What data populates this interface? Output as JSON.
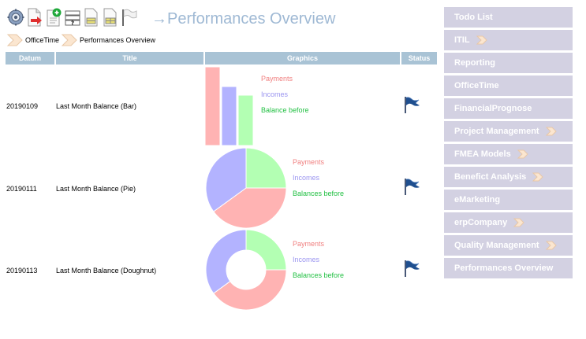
{
  "page_title": "→Performances Overview",
  "toolbar": {
    "icons": [
      "settings-gear-icon",
      "export-document-icon",
      "add-document-icon",
      "help-list-icon",
      "report-document-icon",
      "grid-document-icon",
      "flag-icon"
    ]
  },
  "breadcrumb": [
    {
      "label": "OfficeTime"
    },
    {
      "label": "Performances Overview"
    }
  ],
  "table": {
    "headers": [
      "Datum",
      "Title",
      "Graphics",
      "Status"
    ],
    "rows": [
      {
        "date": "20190109",
        "title": "Last Month Balance (Bar)",
        "chart": "bar",
        "legend": [
          "Payments",
          "Incomes",
          "Balance before"
        ],
        "status_icon": "flag-icon"
      },
      {
        "date": "20190111",
        "title": "Last Month Balance (Pie)",
        "chart": "pie",
        "legend": [
          "Payments",
          "Incomes",
          "Balances before"
        ],
        "status_icon": "flag-icon"
      },
      {
        "date": "20190113",
        "title": "Last Month Balance (Doughnut)",
        "chart": "doughnut",
        "legend": [
          "Payments",
          "Incomes",
          "Balances before"
        ],
        "status_icon": "flag-icon"
      }
    ]
  },
  "chart_data": [
    {
      "type": "bar",
      "categories": [
        "Payments",
        "Incomes",
        "Balance before"
      ],
      "values": [
        100,
        75,
        64
      ],
      "colors": [
        "#ffb3b3",
        "#b3b3ff",
        "#b3ffb3"
      ]
    },
    {
      "type": "pie",
      "categories": [
        "Payments",
        "Incomes",
        "Balances before"
      ],
      "values": [
        40,
        35,
        25
      ],
      "colors": [
        "#ffb3b3",
        "#b3b3ff",
        "#b3ffb3"
      ]
    },
    {
      "type": "pie",
      "subtype": "doughnut",
      "categories": [
        "Payments",
        "Incomes",
        "Balances before"
      ],
      "values": [
        40,
        35,
        25
      ],
      "colors": [
        "#ffb3b3",
        "#b3b3ff",
        "#b3ffb3"
      ]
    }
  ],
  "sidebar": {
    "items": [
      {
        "label": "Todo List",
        "has_submenu": false
      },
      {
        "label": "ITIL",
        "has_submenu": true
      },
      {
        "label": "Reporting",
        "has_submenu": false
      },
      {
        "label": "OfficeTime",
        "has_submenu": false
      },
      {
        "label": "FinancialPrognose",
        "has_submenu": false
      },
      {
        "label": "Project Management",
        "has_submenu": true
      },
      {
        "label": "FMEA Models",
        "has_submenu": true
      },
      {
        "label": "Benefict Analysis",
        "has_submenu": true
      },
      {
        "label": "eMarketing",
        "has_submenu": false
      },
      {
        "label": "erpCompany",
        "has_submenu": true
      },
      {
        "label": "Quality Management",
        "has_submenu": true
      },
      {
        "label": "Performances Overview",
        "has_submenu": false
      }
    ]
  },
  "colors": {
    "header_bg": "#a9c3d5",
    "sidebar_bg": "#d3d1e2",
    "title": "#9fb9d4",
    "payments": "#f07f7f",
    "incomes": "#9b95f0",
    "balance": "#22c043"
  }
}
